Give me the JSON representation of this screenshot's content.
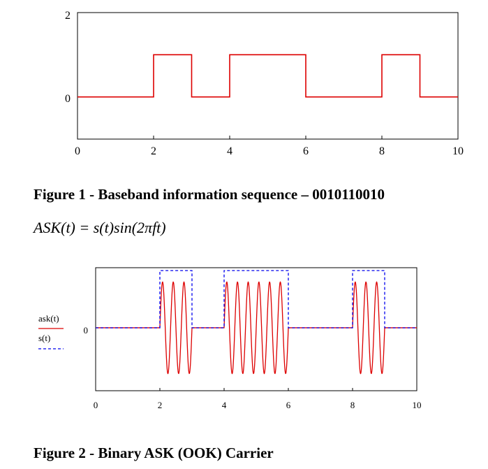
{
  "figures": {
    "caption1": "Figure 1 - Baseband information sequence – 0010110010",
    "equation": "ASK(t) = s(t)sin(2πft)",
    "caption2": "Figure 2 - Binary ASK (OOK) Carrier"
  },
  "chart_data": [
    {
      "type": "line",
      "title": "",
      "xlabel": "",
      "ylabel": "",
      "xlim": [
        0,
        10
      ],
      "ylim": [
        -1,
        2
      ],
      "x_ticks": [
        0,
        2,
        4,
        6,
        8,
        10
      ],
      "x_tick_labels": [
        "0",
        "2",
        "4",
        "6",
        "8",
        "10"
      ],
      "y_ticks": [
        0,
        2
      ],
      "y_tick_labels": [
        "0",
        "2"
      ],
      "grid": false,
      "series": [
        {
          "line_type": "step",
          "color": "#dd0000",
          "bits": [
            0,
            0,
            1,
            0,
            1,
            1,
            0,
            0,
            1,
            0
          ],
          "x": [
            0,
            2,
            2,
            3,
            3,
            4,
            4,
            6,
            6,
            8,
            8,
            9,
            9,
            10
          ],
          "y": [
            0,
            0,
            1,
            1,
            0,
            0,
            1,
            1,
            0,
            0,
            1,
            1,
            0,
            0
          ]
        }
      ]
    },
    {
      "type": "line",
      "title": "",
      "xlabel": "",
      "ylabel": "",
      "xlim": [
        0,
        10
      ],
      "ylim": [
        -1.1,
        1.05
      ],
      "x_ticks": [
        0,
        2,
        4,
        6,
        8,
        10
      ],
      "x_tick_labels": [
        "0",
        "2",
        "4",
        "6",
        "8",
        "10"
      ],
      "y_ticks": [
        0
      ],
      "y_tick_labels": [
        "0"
      ],
      "grid": false,
      "legend_position": "left",
      "series": [
        {
          "name": "ask(t)",
          "line_type": "ask",
          "color": "#dd0000",
          "dash": "solid",
          "carrier_frequency": 3,
          "amplitude": 0.8,
          "bits": [
            0,
            0,
            1,
            0,
            1,
            1,
            0,
            0,
            1,
            0
          ]
        },
        {
          "name": "s(t)",
          "line_type": "step",
          "color": "#0000ee",
          "dash": "dashed",
          "x": [
            0,
            2,
            2,
            3,
            3,
            4,
            4,
            6,
            6,
            8,
            8,
            9,
            9,
            10
          ],
          "y": [
            0,
            0,
            1,
            1,
            0,
            0,
            1,
            1,
            0,
            0,
            1,
            1,
            0,
            0
          ]
        }
      ]
    }
  ]
}
